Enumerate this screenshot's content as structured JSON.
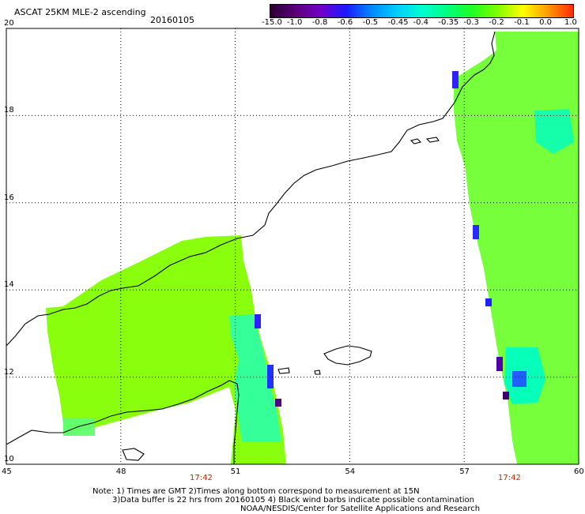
{
  "header": {
    "title": "ASCAT 25KM MLE-2 ascending",
    "date": "20160105"
  },
  "colorbar": {
    "labels": [
      "-15.0",
      "-1.0",
      "-0.8",
      "-0.6",
      "-0.5",
      "-0.45",
      "-0.4",
      "-0.35",
      "-0.3",
      "-0.2",
      "-0.1",
      "0.0",
      "1.0"
    ],
    "colors": [
      "#2a0030",
      "#5a007a",
      "#7000c8",
      "#1a1aff",
      "#0088ff",
      "#00ccff",
      "#00ffd0",
      "#00ff80",
      "#20ff20",
      "#80ff00",
      "#ffff00",
      "#ff9900",
      "#ff2a00"
    ]
  },
  "axes": {
    "lat_labels": [
      "20",
      "18",
      "16",
      "14",
      "12",
      "10"
    ],
    "lon_labels": [
      "45",
      "48",
      "51",
      "54",
      "57",
      "60"
    ],
    "lat_range": [
      10,
      20
    ],
    "lon_range": [
      45,
      60
    ],
    "grid": true
  },
  "swath_times": [
    "17:42",
    "17:42"
  ],
  "notes": [
    "Note: 1) Times are GMT 2)Times along bottom correspond to measurement at 15N",
    "3)Data buffer is 22 hrs from 20160105 4) Black wind barbs indicate possible contamination",
    "NOAA/NESDIS/Center for Satellite Applications and Research"
  ],
  "colors": {
    "land_fill": "#ffffff",
    "main_value": "#80ff00",
    "coast": "#000000"
  }
}
